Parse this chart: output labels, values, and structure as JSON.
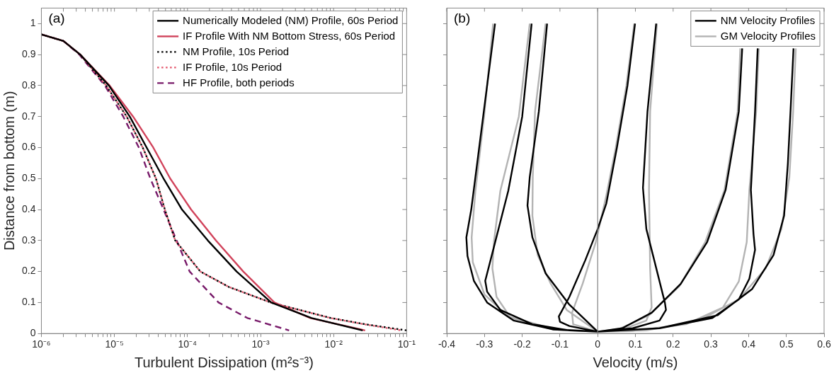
{
  "chart_data": [
    {
      "type": "line",
      "xlabel": "Turbulent Dissipation (m²s⁻³)",
      "ylabel": "Distance from bottom (m)",
      "annotations": [
        "(a)"
      ],
      "log": "x",
      "grid": false,
      "legend": "top right",
      "marker": "none",
      "xlim": [
        1e-06,
        0.1
      ],
      "ylim": [
        0,
        1.05
      ],
      "xticks": [
        {
          "value": 1e-06,
          "label": "10⁻⁶"
        },
        {
          "value": 2e-06,
          "label": null
        },
        {
          "value": 3e-06,
          "label": null
        },
        {
          "value": 4e-06,
          "label": null
        },
        {
          "value": 5e-06,
          "label": null
        },
        {
          "value": 6e-06,
          "label": null
        },
        {
          "value": 7e-06,
          "label": null
        },
        {
          "value": 8e-06,
          "label": null
        },
        {
          "value": 9e-06,
          "label": null
        },
        {
          "value": 1e-05,
          "label": "10⁻⁵"
        },
        {
          "value": 2e-05,
          "label": null
        },
        {
          "value": 3e-05,
          "label": null
        },
        {
          "value": 4e-05,
          "label": null
        },
        {
          "value": 5e-05,
          "label": null
        },
        {
          "value": 6e-05,
          "label": null
        },
        {
          "value": 7e-05,
          "label": null
        },
        {
          "value": 8e-05,
          "label": null
        },
        {
          "value": 9e-05,
          "label": null
        },
        {
          "value": 0.0001,
          "label": "10⁻⁴"
        },
        {
          "value": 0.0002,
          "label": null
        },
        {
          "value": 0.0003,
          "label": null
        },
        {
          "value": 0.0004,
          "label": null
        },
        {
          "value": 0.0005,
          "label": null
        },
        {
          "value": 0.0006,
          "label": null
        },
        {
          "value": 0.0007,
          "label": null
        },
        {
          "value": 0.0008,
          "label": null
        },
        {
          "value": 0.0009,
          "label": null
        },
        {
          "value": 0.001,
          "label": "10⁻³"
        },
        {
          "value": 0.002,
          "label": null
        },
        {
          "value": 0.003,
          "label": null
        },
        {
          "value": 0.004,
          "label": null
        },
        {
          "value": 0.005,
          "label": null
        },
        {
          "value": 0.006,
          "label": null
        },
        {
          "value": 0.007,
          "label": null
        },
        {
          "value": 0.008,
          "label": null
        },
        {
          "value": 0.009,
          "label": null
        },
        {
          "value": 0.01,
          "label": "10⁻²"
        },
        {
          "value": 0.02,
          "label": null
        },
        {
          "value": 0.03,
          "label": null
        },
        {
          "value": 0.04,
          "label": null
        },
        {
          "value": 0.05,
          "label": null
        },
        {
          "value": 0.06,
          "label": null
        },
        {
          "value": 0.07,
          "label": null
        },
        {
          "value": 0.08,
          "label": null
        },
        {
          "value": 0.09,
          "label": null
        },
        {
          "value": 0.1,
          "label": "10⁻¹"
        }
      ],
      "yticks": [
        0,
        0.1,
        0.2,
        0.3,
        0.4,
        0.5,
        0.6,
        0.7,
        0.8,
        0.9,
        1
      ],
      "series": [
        {
          "name": "Numerically Modeled (NM) Profile, 60s Period",
          "color": "#000000",
          "line_style": "solid",
          "x": [
            1e-06,
            2e-06,
            3.4e-06,
            8.4e-06,
            1.62e-05,
            2.76e-05,
            4.7e-05,
            8.4e-05,
            0.00019,
            0.00047,
            0.0014,
            0.005,
            0.025
          ],
          "values": [
            0.965,
            0.944,
            0.9,
            0.8,
            0.7,
            0.6,
            0.5,
            0.4,
            0.3,
            0.2,
            0.1,
            0.05,
            0.01
          ]
        },
        {
          "name": "IF Profile With NM Bottom Stress, 60s Period",
          "color": "#d1435b",
          "line_style": "solid",
          "x": [
            1e-06,
            2e-06,
            3.4e-06,
            8.6e-06,
            1.8e-05,
            3.4e-05,
            5.8e-05,
            0.000112,
            0.000245,
            0.00058,
            0.00155,
            0.0048,
            0.027
          ],
          "values": [
            0.965,
            0.944,
            0.9,
            0.8,
            0.7,
            0.6,
            0.5,
            0.4,
            0.3,
            0.2,
            0.1,
            0.05,
            0.01
          ]
        },
        {
          "name": "NM Profile, 10s Period",
          "color": "#000000",
          "line_style": "dotted",
          "x": [
            1e-06,
            2e-06,
            3.4e-06,
            7.7e-06,
            1.47e-05,
            2.44e-05,
            3.7e-05,
            4.9e-05,
            6.8e-05,
            0.00015,
            0.00037,
            0.00138,
            0.0092,
            0.027,
            0.1
          ],
          "values": [
            0.965,
            0.944,
            0.9,
            0.8,
            0.7,
            0.6,
            0.5,
            0.4,
            0.3,
            0.2,
            0.15,
            0.1,
            0.05,
            0.03,
            0.01
          ]
        },
        {
          "name": "IF Profile, 10s Period",
          "color": "#e4566c",
          "line_style": "dotted",
          "x": [
            1e-06,
            2e-06,
            3.4e-06,
            7.7e-06,
            1.47e-05,
            2.44e-05,
            3.7e-05,
            4.9e-05,
            6.8e-05,
            0.00015,
            0.00037,
            0.00138,
            0.009,
            0.026,
            0.085
          ],
          "values": [
            0.965,
            0.944,
            0.9,
            0.8,
            0.7,
            0.6,
            0.5,
            0.4,
            0.3,
            0.2,
            0.15,
            0.1,
            0.05,
            0.03,
            0.01
          ]
        },
        {
          "name": "HF Profile, both periods",
          "color": "#781a6a",
          "line_style": "dashed",
          "x": [
            1e-06,
            2e-06,
            3.3e-06,
            7.4e-06,
            1.32e-05,
            2.16e-05,
            3.1e-05,
            4.7e-05,
            7.1e-05,
            0.000107,
            0.000266,
            0.00066,
            0.00246
          ],
          "values": [
            0.965,
            0.944,
            0.9,
            0.8,
            0.7,
            0.6,
            0.5,
            0.4,
            0.3,
            0.2,
            0.1,
            0.05,
            0.01
          ]
        }
      ]
    },
    {
      "type": "line",
      "xlabel": "Velocity (m/s)",
      "annotations": [
        "(b)"
      ],
      "grid": false,
      "legend": "top right",
      "marker": "none",
      "tick_labels": "x",
      "xlim": [
        -0.4,
        0.6
      ],
      "ylim": [
        0,
        1.05
      ],
      "xticks": [
        -0.4,
        -0.3,
        -0.2,
        -0.1,
        0,
        0.1,
        0.2,
        0.3,
        0.4,
        0.5,
        0.6
      ],
      "yticks": [
        0,
        0.1,
        0.2,
        0.3,
        0.4,
        0.5,
        0.6,
        0.7,
        0.8,
        0.9,
        1
      ],
      "ref_lines": [
        {
          "axis": "x",
          "value": 0,
          "color": "#808080"
        }
      ],
      "series": [
        {
          "name": "NM Velocity Profiles",
          "color": "#000000",
          "x": [
            -0.272,
            -0.293,
            -0.314,
            -0.335,
            -0.348,
            -0.345,
            -0.328,
            -0.293,
            -0.223,
            -0.117,
            0,
            null,
            -0.175,
            -0.2,
            -0.237,
            -0.279,
            -0.298,
            -0.293,
            -0.258,
            -0.173,
            -0.075,
            0,
            null,
            -0.134,
            -0.156,
            -0.18,
            -0.186,
            -0.173,
            -0.138,
            -0.075,
            0,
            null,
            0.099,
            0.079,
            0.051,
            0.023,
            0,
            -0.033,
            -0.075,
            -0.103,
            -0.1,
            -0.075,
            0,
            null,
            0.155,
            0.132,
            0.12,
            0.129,
            0.15,
            0.178,
            0.181,
            0.164,
            0.093,
            0,
            null,
            0.383,
            0.374,
            0.339,
            0.29,
            0.22,
            0.143,
            0.065,
            0,
            null,
            0.424,
            0.417,
            0.406,
            0.413,
            0.417,
            0.402,
            0.374,
            0.304,
            0.164,
            0,
            null,
            0.519,
            0.511,
            0.504,
            0.494,
            0.466,
            0.409,
            0.318,
            0.164,
            0
          ],
          "values": [
            1,
            0.8,
            0.6,
            0.4,
            0.31,
            0.25,
            0.17,
            0.1,
            0.042,
            0.013,
            0.006,
            null,
            1,
            0.7,
            0.46,
            0.26,
            0.17,
            0.135,
            0.076,
            0.03,
            0.01,
            0.006,
            null,
            1,
            0.716,
            0.505,
            0.413,
            0.31,
            0.194,
            0.093,
            0.006,
            null,
            1,
            0.8,
            0.6,
            0.42,
            0.337,
            0.236,
            0.118,
            0.055,
            0.038,
            0.024,
            0.006,
            null,
            1,
            0.716,
            0.47,
            0.337,
            0.236,
            0.1,
            0.076,
            0.042,
            0.017,
            0.006,
            null,
            0.92,
            0.716,
            0.463,
            0.295,
            0.16,
            0.067,
            0.017,
            0.006,
            null,
            0.92,
            0.716,
            0.463,
            0.32,
            0.27,
            0.177,
            0.11,
            0.05,
            0.017,
            0.006,
            null,
            0.92,
            0.716,
            0.548,
            0.38,
            0.253,
            0.143,
            0.059,
            0.017,
            0.006
          ]
        },
        {
          "name": "GM Velocity Profiles",
          "color": "#b3b3b3",
          "x": [
            -0.277,
            -0.301,
            -0.324,
            -0.334,
            -0.331,
            -0.3,
            -0.237,
            -0.117,
            0,
            null,
            -0.18,
            -0.209,
            -0.258,
            -0.275,
            -0.279,
            -0.268,
            -0.23,
            -0.117,
            0,
            null,
            -0.138,
            -0.166,
            -0.172,
            -0.173,
            -0.159,
            -0.124,
            -0.082,
            0,
            null,
            0.097,
            0.076,
            0.048,
            0.023,
            -0.005,
            -0.04,
            -0.068,
            -0.065,
            0,
            null,
            0.157,
            0.139,
            0.136,
            0.139,
            0.143,
            0.129,
            0.065,
            0,
            null,
            0.378,
            0.371,
            0.336,
            0.285,
            0.216,
            0.136,
            0.058,
            0,
            null,
            0.427,
            0.42,
            0.402,
            0.395,
            0.374,
            0.332,
            0.234,
            0.093,
            0,
            null,
            0.525,
            0.518,
            0.508,
            0.487,
            0.445,
            0.374,
            0.269,
            0.129,
            0
          ],
          "values": [
            1,
            0.7,
            0.46,
            0.31,
            0.23,
            0.126,
            0.055,
            0.015,
            0.006,
            null,
            1,
            0.7,
            0.46,
            0.295,
            0.21,
            0.118,
            0.05,
            0.013,
            0.006,
            null,
            1,
            0.716,
            0.505,
            0.38,
            0.253,
            0.16,
            0.076,
            0.006,
            null,
            1,
            0.8,
            0.6,
            0.446,
            0.295,
            0.16,
            0.067,
            0.03,
            0.006,
            null,
            1,
            0.716,
            0.463,
            0.21,
            0.084,
            0.042,
            0.013,
            0.006,
            null,
            0.92,
            0.716,
            0.463,
            0.295,
            0.152,
            0.059,
            0.015,
            0.006,
            null,
            0.92,
            0.716,
            0.463,
            0.295,
            0.168,
            0.084,
            0.03,
            0.008,
            0.006,
            null,
            0.92,
            0.716,
            0.505,
            0.337,
            0.21,
            0.11,
            0.042,
            0.01,
            0.006
          ]
        }
      ]
    }
  ]
}
